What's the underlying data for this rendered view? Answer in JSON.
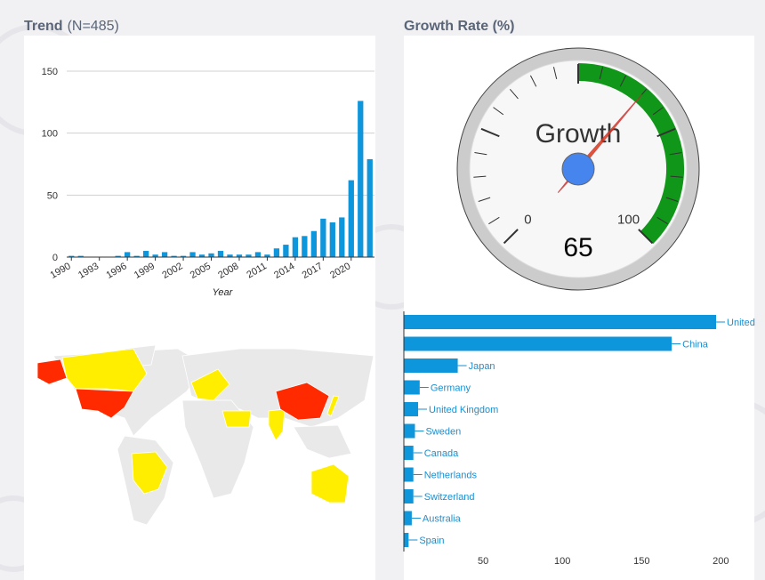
{
  "chart_data": [
    {
      "type": "bar",
      "title": "Trend",
      "subtitle": "(N=485)",
      "x": [
        1990,
        1991,
        1992,
        1993,
        1994,
        1995,
        1996,
        1997,
        1998,
        1999,
        2000,
        2001,
        2002,
        2003,
        2004,
        2005,
        2006,
        2007,
        2008,
        2009,
        2010,
        2011,
        2012,
        2013,
        2014,
        2015,
        2016,
        2017,
        2018,
        2019,
        2020,
        2021,
        2022
      ],
      "values": [
        1,
        1,
        0,
        0,
        0,
        1,
        4,
        1,
        5,
        2,
        4,
        1,
        1,
        4,
        2,
        3,
        5,
        2,
        2,
        2,
        4,
        2,
        7,
        10,
        16,
        17,
        21,
        31,
        28,
        32,
        62,
        126,
        79
      ],
      "color": "#0e96dc",
      "xlim": [
        1989.5,
        2022.5
      ],
      "xticks": [
        1990,
        1993,
        1996,
        1999,
        2002,
        2005,
        2008,
        2011,
        2014,
        2017,
        2020
      ],
      "ylim": [
        0,
        150
      ],
      "yticks": [
        0,
        50,
        100,
        150
      ],
      "xlabel": "Year",
      "grid": true
    },
    {
      "type": "gauge",
      "title": "Growth Rate (%)",
      "label": "Growth",
      "value": 65,
      "min": 0,
      "max": 100,
      "majorticks": [
        0,
        100
      ],
      "green_from": 50,
      "green_to": 100,
      "green_color": "#109618",
      "needle_color": "#dc3912"
    },
    {
      "type": "hbar",
      "categories": [
        "United",
        "China",
        "Japan",
        "Germany",
        "United Kingdom",
        "Sweden",
        "Canada",
        "Netherlands",
        "Switzerland",
        "Australia",
        "Spain"
      ],
      "values": [
        197,
        169,
        34,
        10,
        9,
        7,
        6,
        6,
        6,
        5,
        3
      ],
      "color": "#0e96dc",
      "xlim": [
        0,
        220
      ],
      "xticks": [
        50,
        100,
        150,
        200
      ]
    }
  ]
}
